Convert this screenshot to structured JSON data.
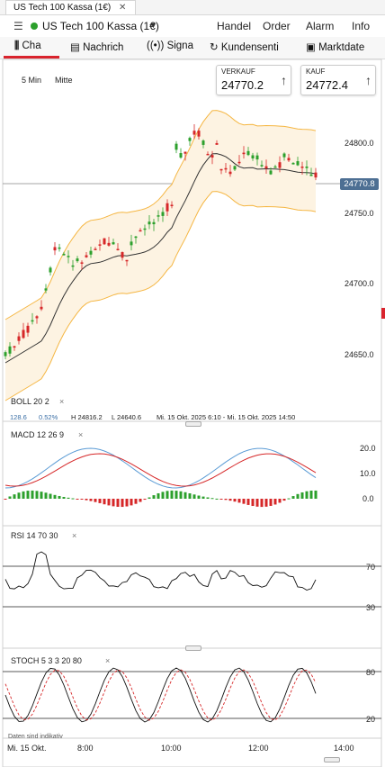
{
  "window": {
    "tab_title": "US Tech 100 Kassa (1€)"
  },
  "header": {
    "instrument": "US Tech 100 Kassa (1€)",
    "menu": [
      "Handel",
      "Order",
      "Alarm",
      "Info"
    ]
  },
  "tabs": [
    "Cha",
    "Nachrich",
    "Signa",
    "Kundensenti",
    "Marktdate"
  ],
  "chart": {
    "interval": "5 Min",
    "price_type": "Mitte",
    "sell_label": "VERKAUF",
    "sell_price": "24770.2",
    "buy_label": "KAUF",
    "buy_price": "24772.4",
    "current_price": "24770.8",
    "y_ticks": [
      "24800.0",
      "24750.0",
      "24700.0",
      "24650.0"
    ],
    "boll_label": "BOLL 20 2",
    "info_line_a": "128.6",
    "info_line_b": "0.52%",
    "info_line_c": "H 24816.2",
    "info_line_d": "L 24640.6",
    "info_line_e": "Mi. 15 Okt. 2025 6:10 - Mi. 15 Okt. 2025 14:50",
    "macd_label": "MACD 12 26 9",
    "macd_ticks": [
      "20.0",
      "10.0",
      "0.0"
    ],
    "rsi_label": "RSI 14 70 30",
    "rsi_ticks": [
      "70",
      "30"
    ],
    "stoch_label": "STOCH 5 3 3 20 80",
    "stoch_ticks": [
      "80",
      "20"
    ],
    "disclaimer": "Daten sind indikativ",
    "x_date": "Mi. 15 Okt.",
    "x_ticks": [
      "8:00",
      "10:00",
      "12:00",
      "14:00"
    ],
    "colors": {
      "up": "#2ca02c",
      "down": "#d62728",
      "band": "#f5b642",
      "ma": "#333333",
      "accent": "#d9232d"
    }
  }
}
